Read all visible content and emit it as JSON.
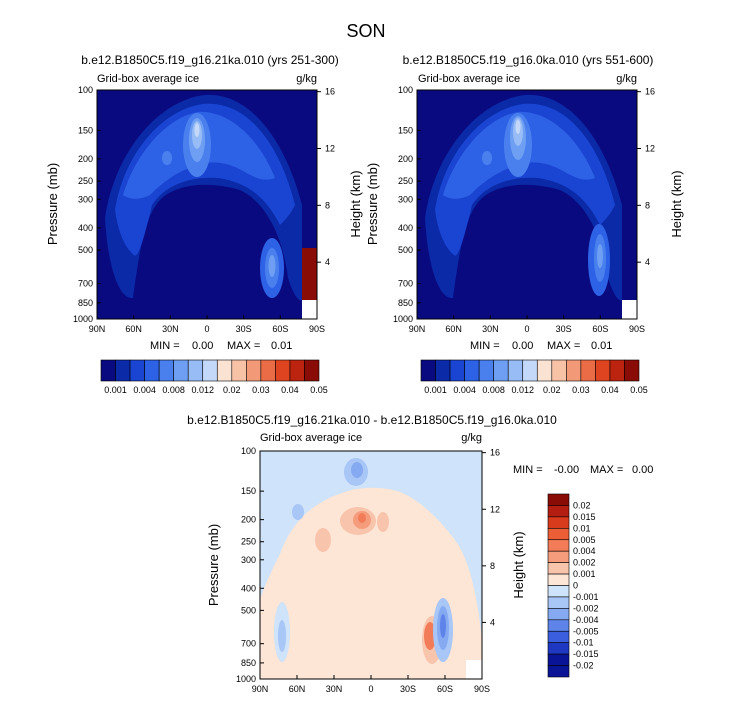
{
  "figure": {
    "season": "SON",
    "field_label": "Grid-box average ice",
    "units": "g/kg",
    "ylabel_left": "Pressure (mb)",
    "ylabel_right": "Height (km)"
  },
  "chart_data": [
    {
      "type": "heatmap",
      "title": "b.e12.B1850C5.f19_g16.21ka.010 (yrs 251-300)",
      "x_ticks": [
        "90N",
        "60N",
        "30N",
        "0",
        "30S",
        "60S",
        "90S"
      ],
      "y_ticks": [
        "100",
        "150",
        "200",
        "250",
        "300",
        "400",
        "500",
        "700",
        "850",
        "1000"
      ],
      "height_ticks": [
        "16",
        "12",
        "8",
        "4"
      ],
      "stats": {
        "min_label": "MIN =",
        "min": "0.00",
        "max_label": "MAX =",
        "max": "0.01"
      },
      "colorbar": {
        "labels": [
          "0.001",
          "0.004",
          "0.008",
          "0.012",
          "0.02",
          "0.03",
          "0.04",
          "0.05"
        ],
        "levels": [
          0.001,
          0.002,
          0.004,
          0.006,
          0.008,
          0.01,
          0.012,
          0.015,
          0.02,
          0.025,
          0.03,
          0.035,
          0.04,
          0.045,
          0.05
        ]
      }
    },
    {
      "type": "heatmap",
      "title": "b.e12.B1850C5.f19_g16.0ka.010 (yrs 551-600)",
      "x_ticks": [
        "90N",
        "60N",
        "30N",
        "0",
        "30S",
        "60S",
        "90S"
      ],
      "y_ticks": [
        "100",
        "150",
        "200",
        "250",
        "300",
        "400",
        "500",
        "700",
        "850",
        "1000"
      ],
      "height_ticks": [
        "16",
        "12",
        "8",
        "4"
      ],
      "stats": {
        "min_label": "MIN =",
        "min": "0.00",
        "max_label": "MAX =",
        "max": "0.01"
      },
      "colorbar": {
        "labels": [
          "0.001",
          "0.004",
          "0.008",
          "0.012",
          "0.02",
          "0.03",
          "0.04",
          "0.05"
        ],
        "levels": [
          0.001,
          0.002,
          0.004,
          0.006,
          0.008,
          0.01,
          0.012,
          0.015,
          0.02,
          0.025,
          0.03,
          0.035,
          0.04,
          0.045,
          0.05
        ]
      }
    },
    {
      "type": "heatmap",
      "title": "b.e12.B1850C5.f19_g16.21ka.010 - b.e12.B1850C5.f19_g16.0ka.010",
      "x_ticks": [
        "90N",
        "60N",
        "30N",
        "0",
        "30S",
        "60S",
        "90S"
      ],
      "y_ticks": [
        "100",
        "150",
        "200",
        "250",
        "300",
        "400",
        "500",
        "700",
        "850",
        "1000"
      ],
      "height_ticks": [
        "16",
        "12",
        "8",
        "4"
      ],
      "stats": {
        "min_label": "MIN =",
        "min": "-0.00",
        "max_label": "MAX =",
        "max": "0.00"
      },
      "colorbar": {
        "labels": [
          "0.02",
          "0.015",
          "0.01",
          "0.005",
          "0.004",
          "0.002",
          "0.001",
          "0",
          "-0.001",
          "-0.002",
          "-0.004",
          "-0.005",
          "-0.01",
          "-0.015",
          "-0.02"
        ],
        "levels": [
          0.02,
          0.015,
          0.01,
          0.005,
          0.004,
          0.002,
          0.001,
          0,
          -0.001,
          -0.002,
          -0.004,
          -0.005,
          -0.01,
          -0.015,
          -0.02
        ]
      }
    }
  ],
  "colors": {
    "abs_scale": [
      "#0a0a80",
      "#0a2aa8",
      "#1a45d2",
      "#2e62e6",
      "#4a80ee",
      "#6e9ff2",
      "#98bcf6",
      "#c4d8fa",
      "#fbe3d3",
      "#f7c2a6",
      "#f29a78",
      "#ea6c46",
      "#de4420",
      "#bc2410",
      "#8a0c06"
    ],
    "diff_scale": [
      "#8a0c06",
      "#b41e10",
      "#d83a1c",
      "#ec5e36",
      "#f27c58",
      "#f59c7c",
      "#f8c4ac",
      "#fde6d6",
      "#cfe3fa",
      "#a8c6f6",
      "#86aaf2",
      "#5e84ea",
      "#3a5ede",
      "#1e38c2",
      "#0a1496"
    ]
  }
}
